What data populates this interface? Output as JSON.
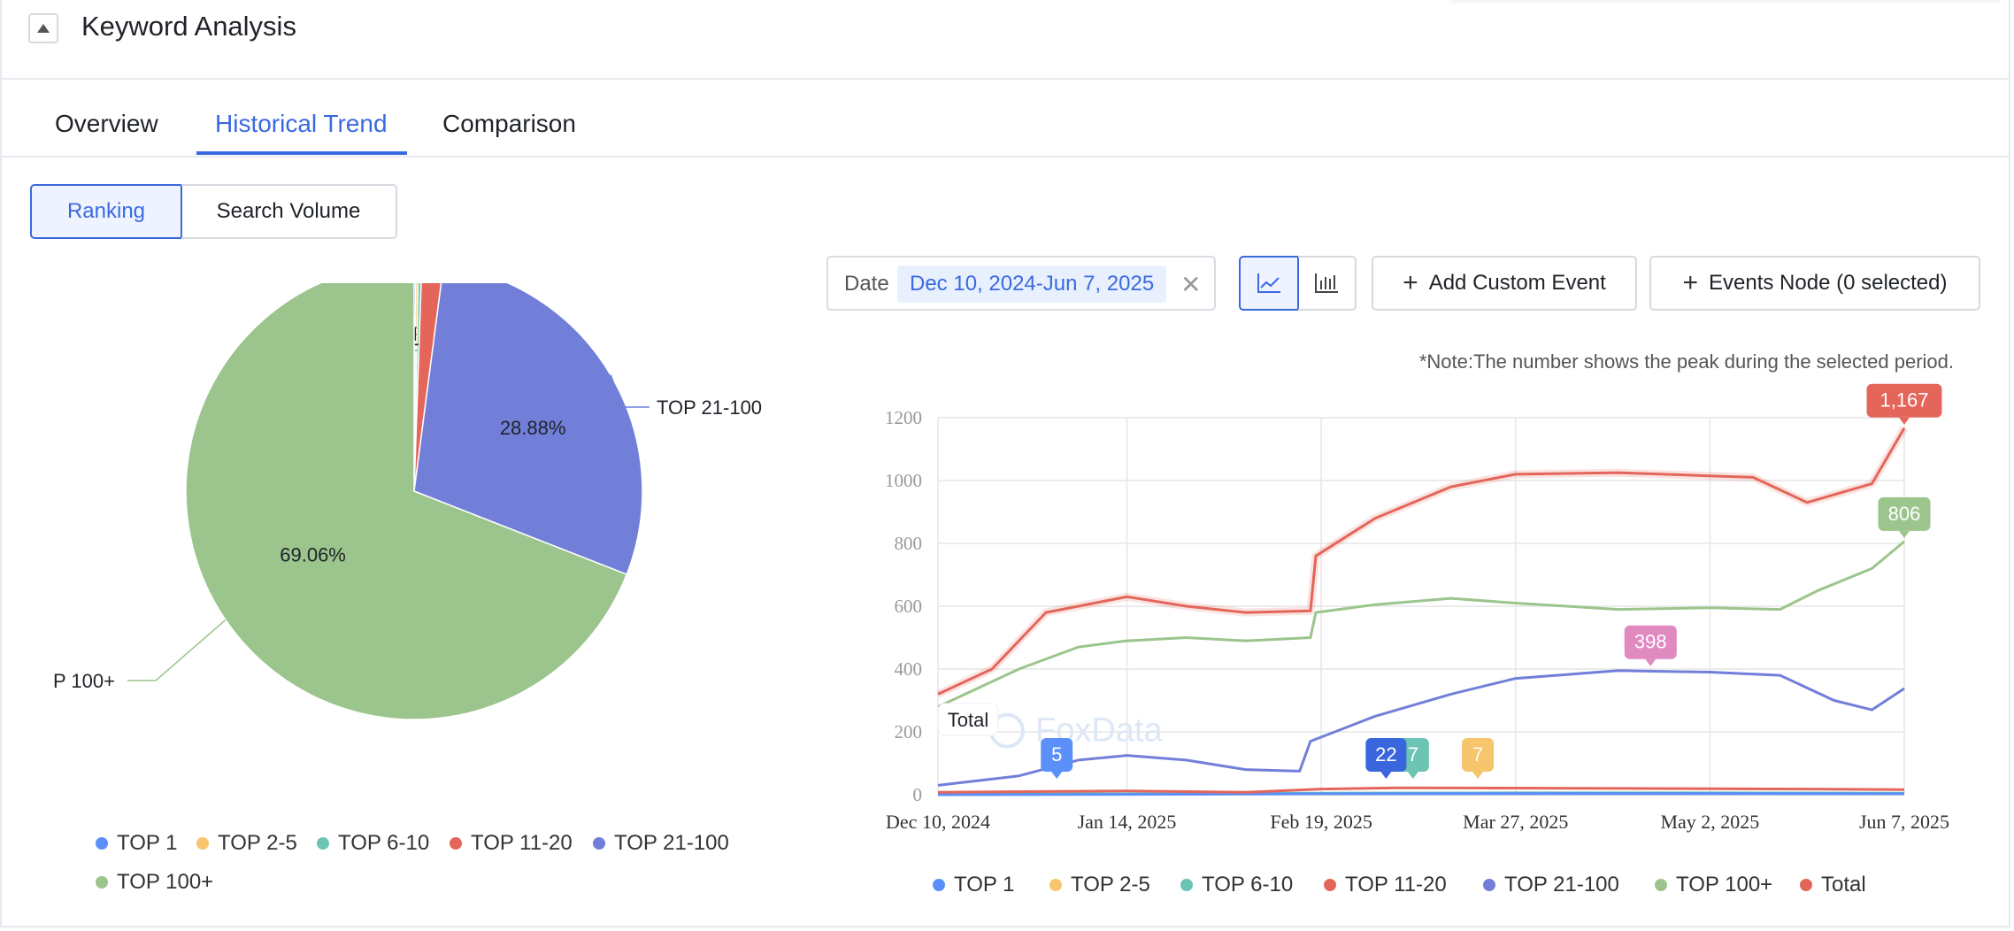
{
  "header": {
    "title": "Keyword Analysis"
  },
  "tabs": [
    {
      "label": "Overview"
    },
    {
      "label": "Historical Trend"
    },
    {
      "label": "Comparison"
    }
  ],
  "segment": {
    "ranking": "Ranking",
    "search_volume": "Search Volume"
  },
  "controls": {
    "date_label": "Date",
    "date_value": "Dec 10, 2024-Jun 7, 2025",
    "add_event": "Add Custom Event",
    "events_node": "Events Node (0 selected)"
  },
  "note": "*Note:The number shows the peak during the selected period.",
  "colors": {
    "top1": "#5b8ff9",
    "top2_5": "#f6c56c",
    "top6_10": "#6cc4b4",
    "top11_20": "#e4665a",
    "top21_100": "#717fd9",
    "top100plus": "#9bc58c",
    "total": "#e4665a",
    "accent": "#3a6ae0"
  },
  "chart_data": [
    {
      "type": "pie",
      "series": [
        {
          "name": "TOP 1",
          "value": 0.12
        },
        {
          "name": "TOP 2-5",
          "value": 0.18
        },
        {
          "name": "TOP 6-10",
          "value": 0.24
        },
        {
          "name": "TOP 11-20",
          "value": 1.52
        },
        {
          "name": "TOP 21-100",
          "value": 28.88,
          "label": "28.88%"
        },
        {
          "name": "TOP 100+",
          "value": 69.06,
          "label": "69.06%"
        }
      ],
      "legend": [
        "TOP 1",
        "TOP 2-5",
        "TOP 6-10",
        "TOP 11-20",
        "TOP 21-100",
        "TOP 100+"
      ],
      "legend_position": "bottom"
    },
    {
      "type": "line",
      "x_labels": [
        "Dec 10, 2024",
        "Jan 14, 2025",
        "Feb 19, 2025",
        "Mar 27, 2025",
        "May 2, 2025",
        "Jun 7, 2025"
      ],
      "x_range": [
        "Dec 10, 2024",
        "Jun 7, 2025"
      ],
      "ylim": [
        0,
        1200
      ],
      "yticks": [
        0,
        200,
        400,
        600,
        800,
        1000,
        1200
      ],
      "grid": true,
      "watermark": "FoxData",
      "tooltip_label": "Total",
      "legend_position": "bottom",
      "series": [
        {
          "name": "TOP 1",
          "key": "top1",
          "peak": "5",
          "points": [
            [
              "Dec 10, 2024",
              0
            ],
            [
              "Jan 14, 2025",
              1
            ],
            [
              "Feb 19, 2025",
              3
            ],
            [
              "Apr 15, 2025",
              4
            ],
            [
              "Jun 7, 2025",
              3
            ]
          ],
          "peak_at": [
            "Jan 1, 2025",
            5
          ]
        },
        {
          "name": "TOP 2-5",
          "key": "top2_5",
          "peak": "7",
          "points": [
            [
              "Dec 10, 2024",
              1
            ],
            [
              "Jan 14, 2025",
              2
            ],
            [
              "Feb 19, 2025",
              4
            ],
            [
              "Mar 27, 2025",
              6
            ],
            [
              "May 2, 2025",
              5
            ],
            [
              "Jun 7, 2025",
              4
            ]
          ],
          "peak_at": [
            "Mar 20, 2025",
            7
          ]
        },
        {
          "name": "TOP 6-10",
          "key": "top6_10",
          "peak": "7",
          "points": [
            [
              "Dec 10, 2024",
              2
            ],
            [
              "Jan 14, 2025",
              3
            ],
            [
              "Feb 19, 2025",
              5
            ],
            [
              "Mar 27, 2025",
              6
            ],
            [
              "May 2, 2025",
              6
            ],
            [
              "Jun 7, 2025",
              5
            ]
          ],
          "peak_at": [
            "Mar 8, 2025",
            7
          ]
        },
        {
          "name": "TOP 11-20",
          "key": "top11_20",
          "peak": "22",
          "points": [
            [
              "Dec 10, 2024",
              8
            ],
            [
              "Jan 14, 2025",
              12
            ],
            [
              "Feb 5, 2025",
              8
            ],
            [
              "Feb 19, 2025",
              18
            ],
            [
              "Mar 5, 2025",
              22
            ],
            [
              "Apr 15, 2025",
              20
            ],
            [
              "May 20, 2025",
              18
            ],
            [
              "Jun 7, 2025",
              16
            ]
          ],
          "peak_at": [
            "Mar 3, 2025",
            22
          ]
        },
        {
          "name": "TOP 21-100",
          "key": "top21_100",
          "peak": "398",
          "points": [
            [
              "Dec 10, 2024",
              30
            ],
            [
              "Dec 25, 2024",
              60
            ],
            [
              "Jan 5, 2025",
              110
            ],
            [
              "Jan 14, 2025",
              125
            ],
            [
              "Jan 25, 2025",
              110
            ],
            [
              "Feb 5, 2025",
              80
            ],
            [
              "Feb 15, 2025",
              75
            ],
            [
              "Feb 17, 2025",
              170
            ],
            [
              "Mar 1, 2025",
              250
            ],
            [
              "Mar 15, 2025",
              320
            ],
            [
              "Mar 27, 2025",
              370
            ],
            [
              "Apr 15, 2025",
              395
            ],
            [
              "May 2, 2025",
              390
            ],
            [
              "May 15, 2025",
              380
            ],
            [
              "May 25, 2025",
              300
            ],
            [
              "Jun 1, 2025",
              270
            ],
            [
              "Jun 7, 2025",
              338
            ]
          ],
          "peak_at": [
            "Apr 21, 2025",
            398
          ]
        },
        {
          "name": "TOP 100+",
          "key": "top100plus",
          "peak": "806",
          "points": [
            [
              "Dec 10, 2024",
              280
            ],
            [
              "Dec 25, 2024",
              400
            ],
            [
              "Jan 5, 2025",
              470
            ],
            [
              "Jan 14, 2025",
              490
            ],
            [
              "Jan 25, 2025",
              500
            ],
            [
              "Feb 5, 2025",
              490
            ],
            [
              "Feb 17, 2025",
              500
            ],
            [
              "Feb 18, 2025",
              580
            ],
            [
              "Mar 1, 2025",
              605
            ],
            [
              "Mar 15, 2025",
              625
            ],
            [
              "Mar 27, 2025",
              610
            ],
            [
              "Apr 15, 2025",
              590
            ],
            [
              "May 2, 2025",
              595
            ],
            [
              "May 15, 2025",
              590
            ],
            [
              "May 22, 2025",
              650
            ],
            [
              "Jun 1, 2025",
              720
            ],
            [
              "Jun 7, 2025",
              806
            ]
          ],
          "peak_at": [
            "Jun 7, 2025",
            806
          ]
        },
        {
          "name": "Total",
          "key": "total",
          "peak": "1,167",
          "points": [
            [
              "Dec 10, 2024",
              320
            ],
            [
              "Dec 20, 2024",
              400
            ],
            [
              "Dec 30, 2024",
              580
            ],
            [
              "Jan 14, 2025",
              630
            ],
            [
              "Jan 25, 2025",
              600
            ],
            [
              "Feb 5, 2025",
              580
            ],
            [
              "Feb 17, 2025",
              585
            ],
            [
              "Feb 18, 2025",
              760
            ],
            [
              "Mar 1, 2025",
              880
            ],
            [
              "Mar 15, 2025",
              980
            ],
            [
              "Mar 27, 2025",
              1020
            ],
            [
              "Apr 15, 2025",
              1025
            ],
            [
              "May 2, 2025",
              1015
            ],
            [
              "May 10, 2025",
              1010
            ],
            [
              "May 20, 2025",
              930
            ],
            [
              "Jun 1, 2025",
              990
            ],
            [
              "Jun 7, 2025",
              1167
            ]
          ],
          "peak_at": [
            "Jun 7, 2025",
            1167
          ]
        }
      ]
    }
  ]
}
